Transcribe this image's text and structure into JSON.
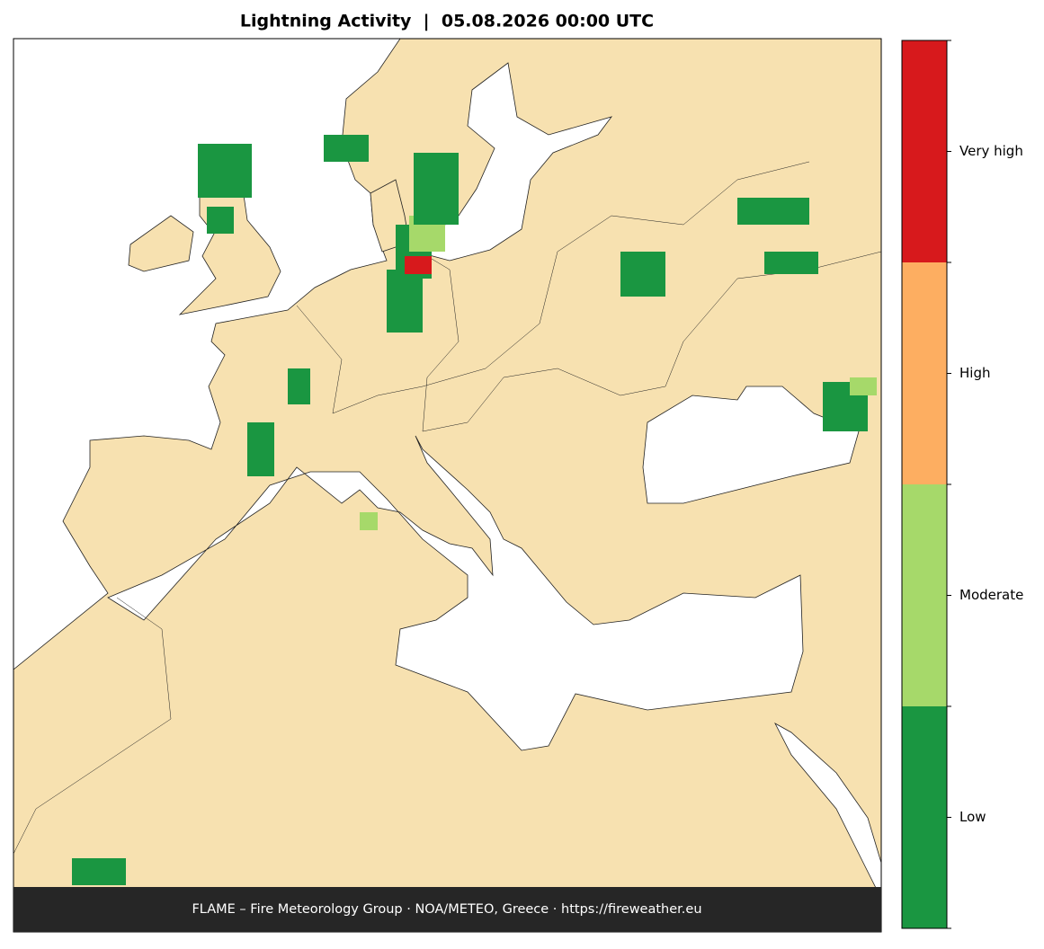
{
  "title": "Lightning Activity  |  05.08.2026 00:00 UTC",
  "footer": "FLAME – Fire Meteorology Group · NOA/METEO, Greece · https://fireweather.eu",
  "legend": {
    "levels": [
      {
        "label": "Low",
        "color": "#1a9641"
      },
      {
        "label": "Moderate",
        "color": "#a6d96a"
      },
      {
        "label": "High",
        "color": "#fdae61"
      },
      {
        "label": "Very high",
        "color": "#d7191c"
      }
    ]
  }
}
